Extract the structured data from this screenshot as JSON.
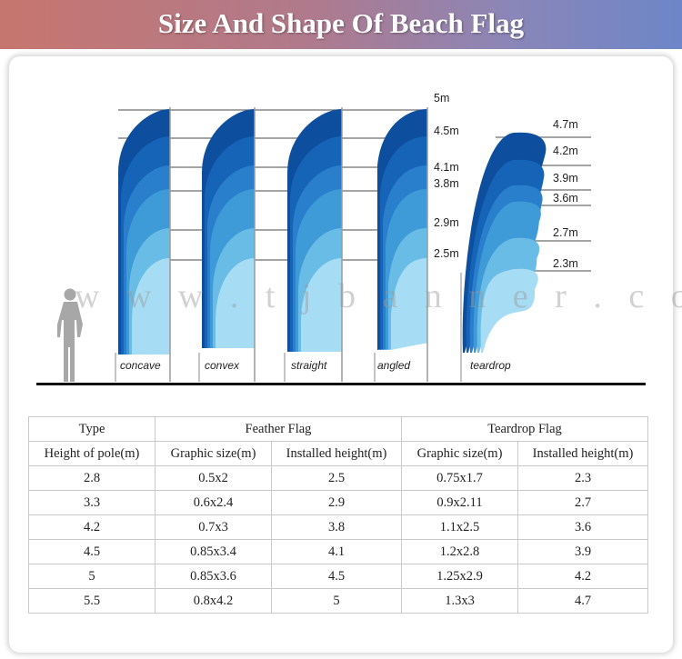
{
  "header": {
    "title": "Size And Shape Of Beach Flag"
  },
  "diagram": {
    "watermark": "w w w . t j b a n n e r . c o m",
    "feather_heights": [
      "5m",
      "4.5m",
      "4.1m",
      "3.8m",
      "2.9m",
      "2.5m"
    ],
    "teardrop_heights": [
      "4.7m",
      "4.2m",
      "3.9m",
      "3.6m",
      "2.7m",
      "2.3m"
    ],
    "flags": [
      "concave",
      "convex",
      "straight",
      "angled",
      "teardrop"
    ]
  },
  "table": {
    "type_label": "Type",
    "feather_group": "Feather Flag",
    "teardrop_group": "Teardrop Flag",
    "col_pole": "Height of pole(m)",
    "col_feather_graphic": "Graphic size(m)",
    "col_feather_installed": "Installed height(m)",
    "col_teardrop_graphic": "Graphic size(m)",
    "col_teardrop_installed": "Installed height(m)",
    "rows": [
      [
        "2.8",
        "0.5x2",
        "2.5",
        "0.75x1.7",
        "2.3"
      ],
      [
        "3.3",
        "0.6x2.4",
        "2.9",
        "0.9x2.11",
        "2.7"
      ],
      [
        "4.2",
        "0.7x3",
        "3.8",
        "1.1x2.5",
        "3.6"
      ],
      [
        "4.5",
        "0.85x3.4",
        "4.1",
        "1.2x2.8",
        "3.9"
      ],
      [
        "5",
        "0.85x3.6",
        "4.5",
        "1.25x2.9",
        "4.2"
      ],
      [
        "5.5",
        "0.8x4.2",
        "5",
        "1.3x3",
        "4.7"
      ]
    ]
  },
  "colors": {
    "flag_shades": [
      "#0d4f9e",
      "#1564b8",
      "#2a7fcc",
      "#3f9ad8",
      "#69bce6",
      "#a6dcf4"
    ]
  }
}
